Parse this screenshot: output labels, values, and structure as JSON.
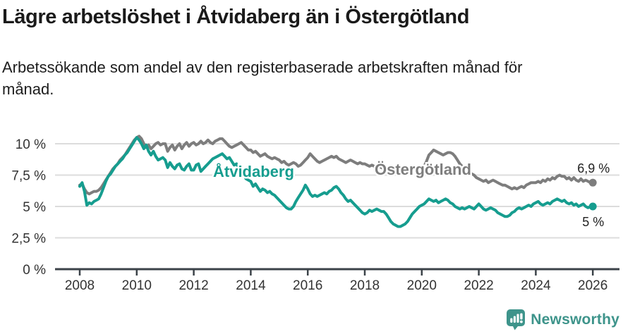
{
  "header": {
    "title": "Lägre arbetslöshet i Åtvidaberg än i Östergötland",
    "subtitle": "Arbetssökande som andel av den registerbaserade arbetskraften månad för månad."
  },
  "footer": {
    "brand": "Newsworthy"
  },
  "colors": {
    "teal": "#169d8f",
    "gray": "#7d7d7d",
    "grid": "#dcdcdc",
    "axis": "#3b4248",
    "tick_text": "#333333",
    "annotation_text": "#222222",
    "logo_teal": "#3e948b"
  },
  "chart_data": {
    "type": "line",
    "title": "Lägre arbetslöshet i Åtvidaberg än i Östergötland",
    "x_unit": "month",
    "x_start": "2008-01",
    "x_end": "2026-01",
    "x_ticks": [
      "2008",
      "2010",
      "2012",
      "2014",
      "2016",
      "2018",
      "2020",
      "2022",
      "2024",
      "2026"
    ],
    "y_ticks": [
      {
        "v": 0,
        "label": "0 %"
      },
      {
        "v": 2.5,
        "label": "2,5 %"
      },
      {
        "v": 5,
        "label": "5 %"
      },
      {
        "v": 7.5,
        "label": "7,5 %"
      },
      {
        "v": 10,
        "label": "10 %"
      }
    ],
    "ylim": [
      0,
      11.2
    ],
    "grid": "horizontal",
    "unit": "%",
    "legend_position": "inline-labels",
    "series": [
      {
        "name": "Östergötland",
        "color": "#7d7d7d",
        "end_label": "6,9 %",
        "values": [
          6.7,
          6.8,
          6.4,
          6.1,
          6.0,
          6.1,
          6.2,
          6.2,
          6.3,
          6.5,
          6.8,
          7.1,
          7.4,
          7.7,
          8.0,
          8.2,
          8.4,
          8.7,
          8.9,
          9.1,
          9.4,
          9.7,
          10.0,
          10.3,
          10.5,
          10.6,
          10.4,
          10.0,
          9.7,
          9.9,
          9.6,
          9.8,
          10.0,
          10.1,
          9.9,
          10.0,
          10.0,
          9.4,
          9.7,
          9.9,
          9.5,
          9.8,
          10.0,
          9.6,
          9.9,
          10.1,
          9.8,
          10.0,
          10.1,
          9.9,
          10.0,
          10.2,
          10.0,
          10.1,
          10.3,
          10.1,
          10.0,
          10.2,
          10.3,
          10.4,
          10.4,
          10.2,
          10.0,
          9.8,
          9.7,
          9.8,
          9.9,
          10.0,
          10.1,
          9.9,
          9.7,
          9.5,
          9.5,
          9.3,
          9.4,
          9.2,
          9.0,
          9.1,
          9.2,
          9.0,
          8.9,
          8.8,
          8.9,
          8.8,
          8.7,
          8.5,
          8.6,
          8.4,
          8.3,
          8.4,
          8.5,
          8.4,
          8.2,
          8.3,
          8.5,
          8.7,
          8.9,
          9.2,
          9.0,
          8.8,
          8.6,
          8.5,
          8.6,
          8.7,
          8.8,
          8.9,
          9.0,
          8.9,
          9.0,
          8.8,
          8.7,
          8.6,
          8.5,
          8.6,
          8.7,
          8.6,
          8.5,
          8.4,
          8.5,
          8.4,
          8.4,
          8.3,
          8.2,
          8.3,
          8.2,
          8.1,
          8.2,
          8.1,
          8.0,
          7.9,
          8.0,
          7.9,
          7.9,
          7.8,
          7.7,
          7.8,
          7.7,
          7.8,
          7.9,
          8.0,
          7.9,
          8.0,
          8.1,
          8.1,
          8.1,
          8.2,
          8.6,
          9.1,
          9.3,
          9.5,
          9.4,
          9.3,
          9.2,
          9.1,
          9.2,
          9.3,
          9.3,
          9.2,
          9.0,
          8.7,
          8.4,
          8.2,
          8.0,
          7.9,
          7.7,
          7.6,
          7.5,
          7.3,
          7.2,
          7.1,
          7.0,
          7.1,
          6.9,
          7.0,
          7.1,
          7.0,
          6.9,
          6.8,
          6.7,
          6.7,
          6.6,
          6.5,
          6.4,
          6.5,
          6.4,
          6.5,
          6.6,
          6.5,
          6.7,
          6.8,
          6.9,
          6.9,
          6.9,
          7.0,
          6.9,
          7.1,
          7.0,
          7.2,
          7.1,
          7.3,
          7.2,
          7.4,
          7.5,
          7.4,
          7.4,
          7.2,
          7.3,
          7.1,
          7.3,
          7.1,
          7.0,
          7.2,
          7.0,
          7.1,
          7.0,
          6.9,
          6.9
        ]
      },
      {
        "name": "Åtvidaberg",
        "color": "#169d8f",
        "end_label": "5 %",
        "values": [
          6.6,
          6.9,
          6.2,
          5.1,
          5.3,
          5.2,
          5.4,
          5.5,
          5.6,
          6.0,
          6.5,
          7.0,
          7.4,
          7.6,
          7.9,
          8.2,
          8.4,
          8.6,
          8.8,
          9.1,
          9.3,
          9.6,
          9.9,
          10.2,
          10.5,
          10.3,
          10.0,
          9.6,
          9.9,
          9.4,
          9.1,
          9.4,
          9.0,
          8.7,
          8.8,
          8.9,
          8.7,
          8.1,
          8.5,
          8.2,
          8.0,
          8.3,
          8.4,
          8.0,
          7.9,
          8.2,
          8.4,
          7.9,
          7.9,
          8.3,
          8.4,
          7.8,
          8.0,
          8.2,
          8.4,
          8.6,
          8.8,
          8.9,
          9.0,
          9.1,
          9.2,
          9.0,
          8.8,
          8.9,
          8.6,
          8.3,
          8.4,
          8.0,
          7.7,
          7.5,
          7.2,
          7.1,
          7.0,
          6.6,
          6.8,
          6.5,
          6.2,
          6.4,
          6.3,
          6.1,
          6.2,
          6.0,
          5.9,
          5.7,
          5.5,
          5.3,
          5.1,
          4.9,
          4.8,
          4.8,
          5.0,
          5.4,
          5.7,
          6.0,
          6.3,
          6.7,
          6.4,
          6.0,
          5.8,
          5.9,
          5.8,
          5.9,
          6.0,
          6.1,
          6.0,
          6.2,
          6.3,
          6.5,
          6.6,
          6.4,
          6.1,
          5.9,
          5.6,
          5.4,
          5.5,
          5.3,
          5.1,
          4.9,
          4.7,
          4.5,
          4.4,
          4.5,
          4.7,
          4.6,
          4.7,
          4.8,
          4.7,
          4.6,
          4.6,
          4.4,
          4.1,
          3.8,
          3.6,
          3.5,
          3.4,
          3.4,
          3.5,
          3.6,
          3.8,
          4.1,
          4.4,
          4.6,
          4.8,
          5.0,
          5.1,
          5.2,
          5.4,
          5.6,
          5.5,
          5.4,
          5.5,
          5.3,
          5.4,
          5.5,
          5.6,
          5.5,
          5.3,
          5.2,
          5.0,
          4.9,
          4.8,
          4.9,
          4.8,
          4.9,
          5.0,
          4.9,
          4.8,
          5.0,
          5.2,
          5.0,
          4.8,
          4.7,
          4.8,
          4.9,
          4.8,
          4.7,
          4.5,
          4.4,
          4.3,
          4.2,
          4.2,
          4.3,
          4.5,
          4.6,
          4.8,
          4.9,
          4.8,
          4.9,
          5.0,
          5.1,
          5.0,
          5.2,
          5.3,
          5.4,
          5.2,
          5.1,
          5.2,
          5.3,
          5.2,
          5.4,
          5.5,
          5.6,
          5.5,
          5.4,
          5.5,
          5.3,
          5.2,
          5.3,
          5.1,
          5.2,
          5.0,
          5.1,
          5.2,
          5.0,
          4.9,
          5.0,
          5.0
        ]
      }
    ]
  }
}
